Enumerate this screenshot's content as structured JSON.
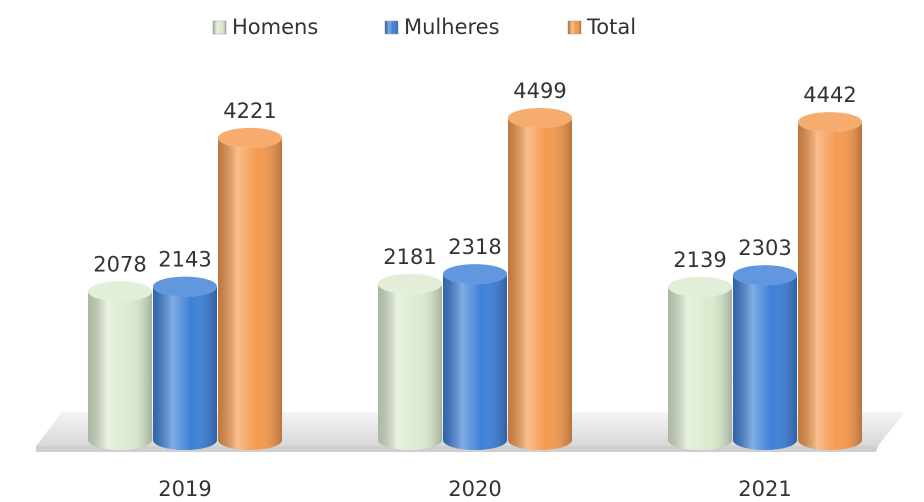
{
  "chart_data": {
    "type": "bar",
    "categories": [
      "2019",
      "2020",
      "2021"
    ],
    "series": [
      {
        "name": "Homens",
        "color": "#dcebcf",
        "values": [
          2078,
          2181,
          2139
        ]
      },
      {
        "name": "Mulheres",
        "color": "#3d80d8",
        "values": [
          2143,
          2318,
          2303
        ]
      },
      {
        "name": "Total",
        "color": "#f59a4f",
        "values": [
          4221,
          4499,
          4442
        ]
      }
    ],
    "legend": "top"
  }
}
